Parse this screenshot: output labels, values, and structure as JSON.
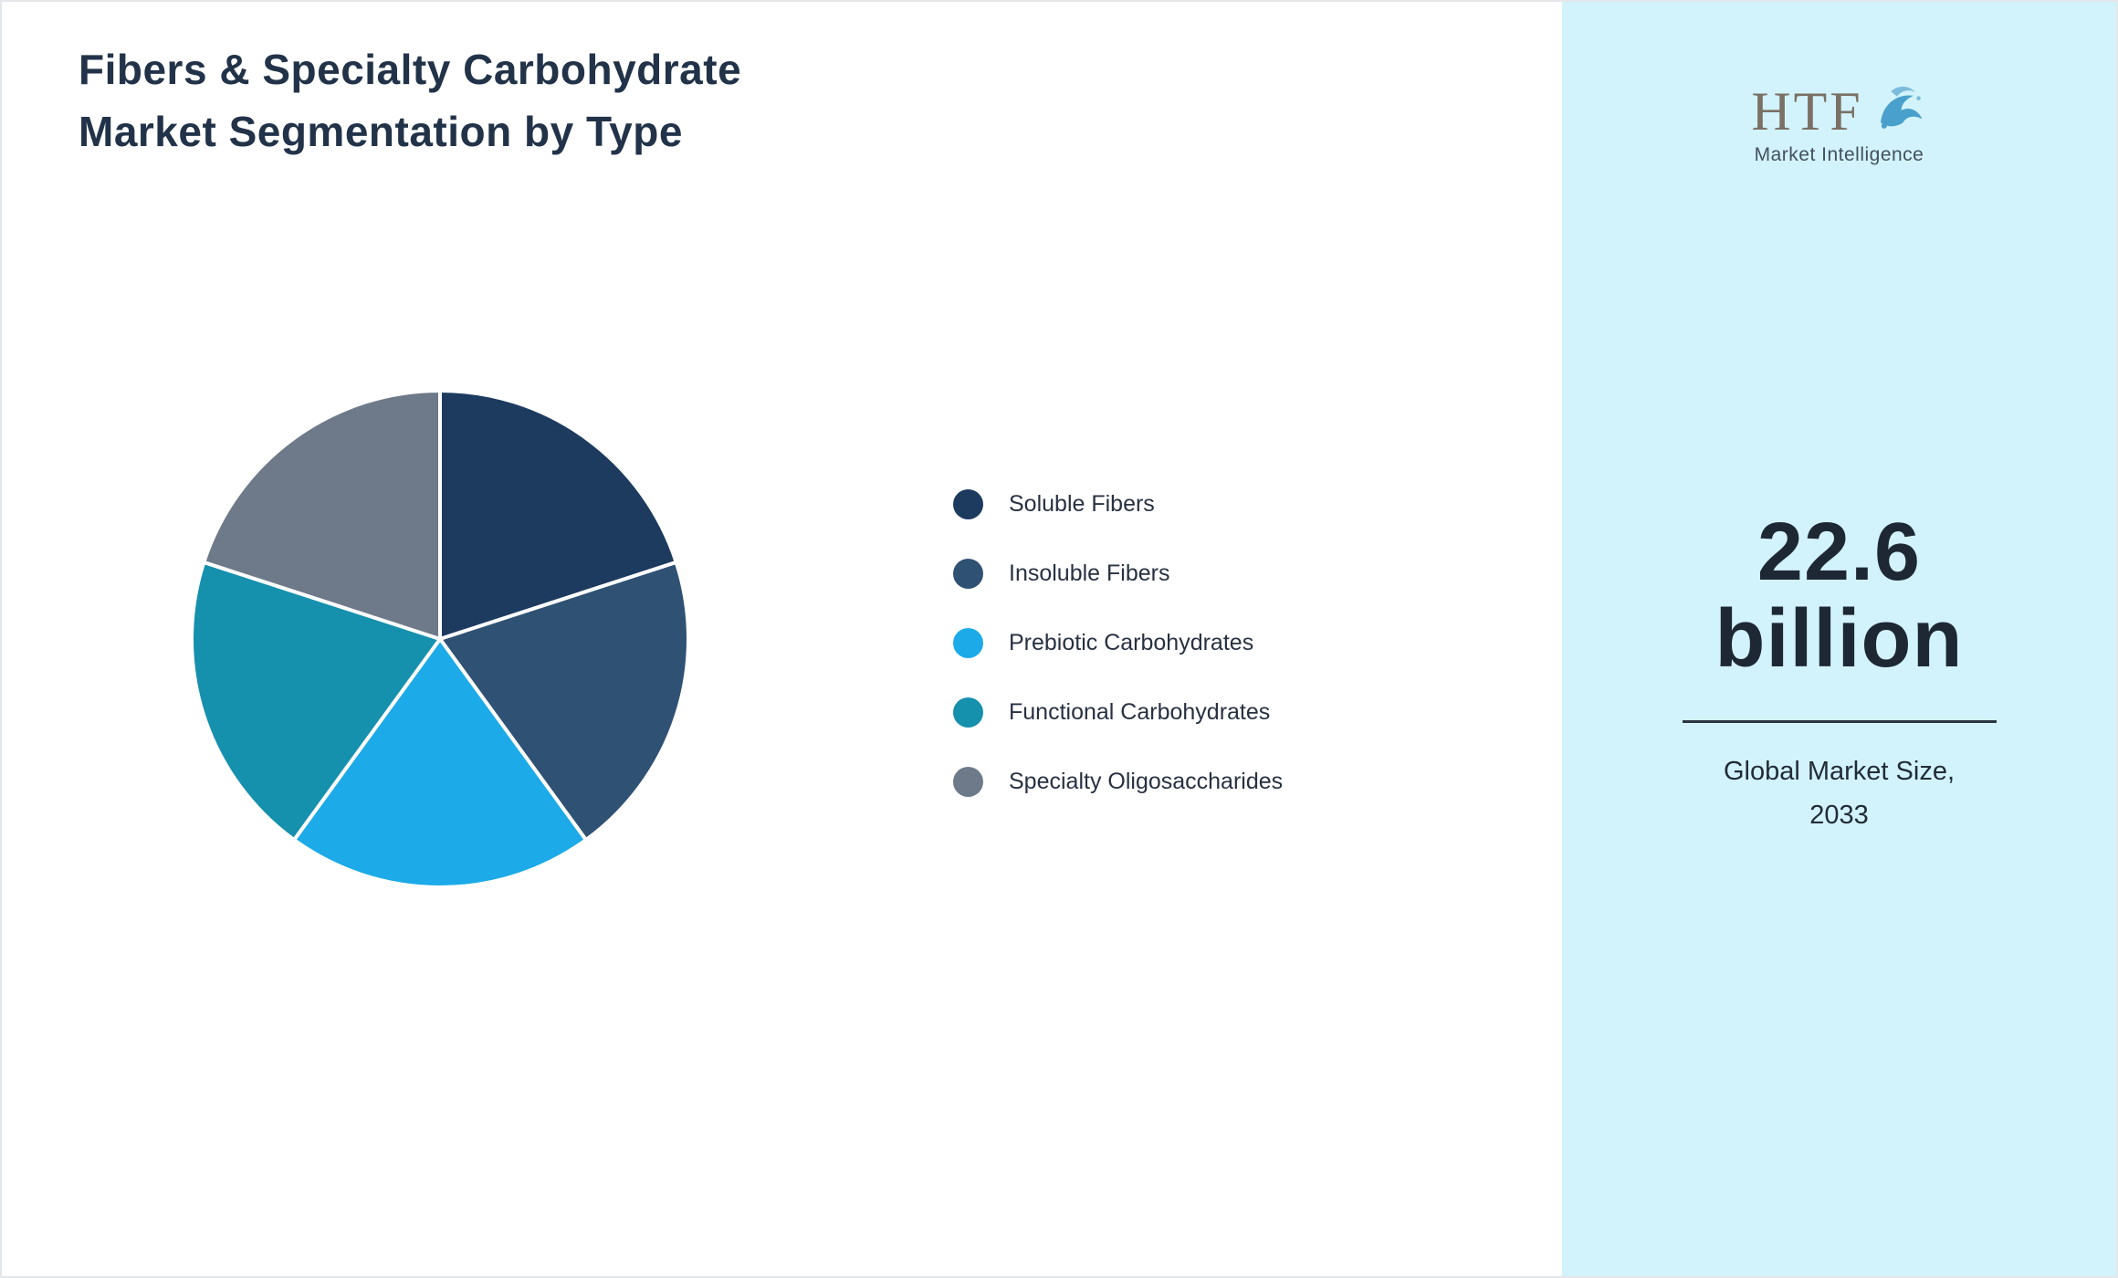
{
  "page": {
    "title_line1": "Fibers & Specialty Carbohydrate",
    "title_line2": "Market Segmentation by Type"
  },
  "chart_data": {
    "type": "pie",
    "title": "Fibers & Specialty Carbohydrate Market Segmentation by Type",
    "legend_position": "right",
    "start_angle_deg": -90,
    "direction": "clockwise",
    "units": "percent share (estimated from equal slices)",
    "series": [
      {
        "label": "Soluble Fibers",
        "value": 20,
        "color": "#1d3a5f"
      },
      {
        "label": "Insoluble Fibers",
        "value": 20,
        "color": "#2f5173"
      },
      {
        "label": "Prebiotic Carbohydrates",
        "value": 20,
        "color": "#1caae8"
      },
      {
        "label": "Functional Carbohydrates",
        "value": 20,
        "color": "#1590ad"
      },
      {
        "label": "Specialty Oligosaccharides",
        "value": 20,
        "color": "#6e7a89"
      }
    ]
  },
  "sidebar": {
    "background_color": "#d2f3fb",
    "logo_text": "HTF",
    "logo_subtext": "Market Intelligence",
    "market_value": "22.6",
    "market_unit": "billion",
    "caption_line1": "Global Market Size,",
    "caption_line2": "2033"
  }
}
